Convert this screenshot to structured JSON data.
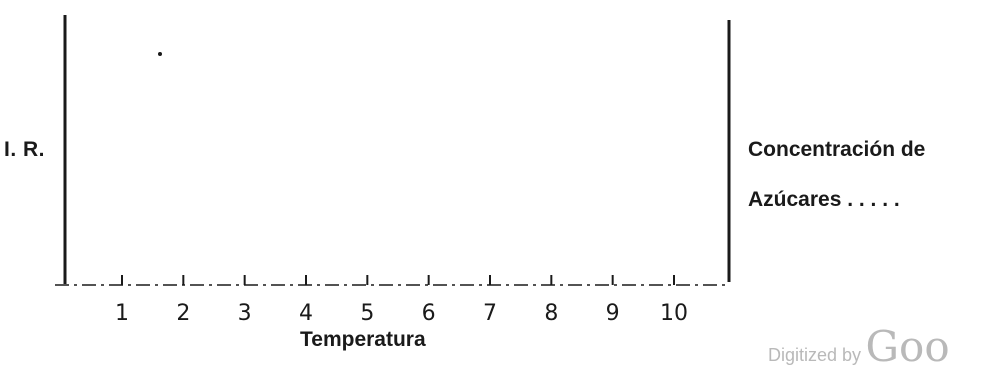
{
  "chart_data": {
    "type": "line",
    "title": "",
    "xlabel": "Temperatura",
    "ylabel": "I. R.",
    "y2label_lines": [
      "Concentración de",
      "Azúcares . . . . ."
    ],
    "categories": [
      "1",
      "2",
      "3",
      "4",
      "5",
      "6",
      "7",
      "8",
      "9",
      "10"
    ],
    "x": [
      1,
      2,
      3,
      4,
      5,
      6,
      7,
      8,
      9,
      10
    ],
    "series": [],
    "grid": false,
    "legend": "none"
  },
  "watermark": {
    "prefix": "Digitized by",
    "brand": "Goo"
  },
  "colors": {
    "ink": "#1a1a1a",
    "watermark": "#b9b9b9"
  }
}
